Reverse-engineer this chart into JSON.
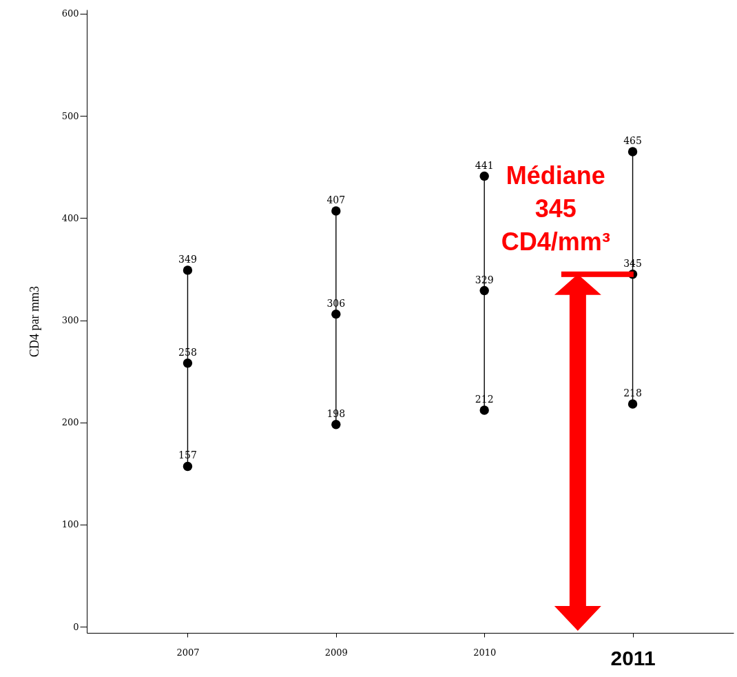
{
  "chart_data": {
    "type": "scatter",
    "ylabel": "CD4 par mm3",
    "categories": [
      "2007",
      "2009",
      "2010",
      "2011"
    ],
    "series": [
      {
        "color": "#000000",
        "values": [
          157,
          198,
          212,
          218
        ]
      },
      {
        "color": "#000000",
        "values": [
          258,
          306,
          329,
          345
        ]
      },
      {
        "color": "#000000",
        "values": [
          349,
          407,
          441,
          465
        ]
      }
    ],
    "data_labels": true,
    "marker": "circle",
    "ylim": [
      -6,
      604
    ],
    "yticks": [
      0,
      100,
      200,
      300,
      400,
      500,
      600
    ],
    "grid": false,
    "annotations": [
      "Médiane\n345\nCD4/mm³"
    ]
  }
}
